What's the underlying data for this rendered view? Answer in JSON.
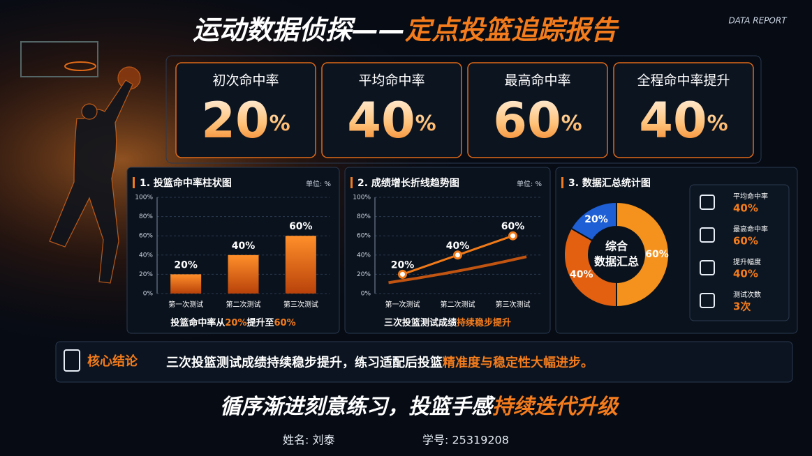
{
  "header": {
    "title": "运动数据侦探——",
    "title_highlight": "定点投篮追踪报告",
    "badge": "DATA REPORT"
  },
  "kpis": [
    {
      "label": "初次命中率",
      "value": 20,
      "unit": "%"
    },
    {
      "label": "平均命中率",
      "value": 40,
      "unit": "%"
    },
    {
      "label": "最高命中率",
      "value": 60,
      "unit": "%"
    },
    {
      "label": "全程命中率提升",
      "value": 40,
      "unit": "%"
    }
  ],
  "chart_data": [
    {
      "type": "bar",
      "title": "1. 投篮命中率柱状图",
      "unit_label": "单位: %",
      "categories": [
        "第一次测试",
        "第二次测试",
        "第三次测试"
      ],
      "values": [
        20,
        40,
        60
      ],
      "value_labels": [
        "20%",
        "40%",
        "60%"
      ],
      "color": "#f07a1a",
      "ylim": [
        0,
        100
      ],
      "yticks": [
        {
          "value": 0,
          "label": "0%"
        },
        {
          "value": 20,
          "label": "20%"
        },
        {
          "value": 40,
          "label": "40%"
        },
        {
          "value": 60,
          "label": "60%"
        },
        {
          "value": 80,
          "label": "80%"
        },
        {
          "value": 100,
          "label": "100%"
        }
      ],
      "grid": true,
      "caption": [
        "投篮命中率从",
        "20%",
        "提升至",
        "60%"
      ]
    },
    {
      "type": "line",
      "title": "2. 成绩增长折线趋势图",
      "unit_label": "单位: %",
      "categories": [
        "第一次测试",
        "第二次测试",
        "第三次测试"
      ],
      "values": [
        20,
        40,
        60
      ],
      "value_labels": [
        "20%",
        "40%",
        "60%"
      ],
      "color": "#f07a1a",
      "ylim": [
        0,
        100
      ],
      "yticks": [
        {
          "value": 0,
          "label": "0%"
        },
        {
          "value": 20,
          "label": "20%"
        },
        {
          "value": 40,
          "label": "40%"
        },
        {
          "value": 60,
          "label": "60%"
        },
        {
          "value": 80,
          "label": "80%"
        },
        {
          "value": 100,
          "label": "100%"
        }
      ],
      "grid": true,
      "caption": [
        "三次投篮测试成绩",
        "持续稳步提升"
      ]
    },
    {
      "type": "pie",
      "title": "3. 数据汇总统计图",
      "center_label": [
        "综合",
        "数据汇总"
      ],
      "values": [
        60,
        40,
        20
      ],
      "value_labels": [
        "60%",
        "40%",
        "20%"
      ],
      "colors": [
        "#f5921e",
        "#e2600f",
        "#1e5fd6"
      ]
    }
  ],
  "summary_stats": [
    {
      "label": "平均命中率",
      "value": "40%"
    },
    {
      "label": "最高命中率",
      "value": "60%"
    },
    {
      "label": "提升幅度",
      "value": "40%"
    },
    {
      "label": "测试次数",
      "value": "3次"
    }
  ],
  "conclusion": {
    "label": "核心结论",
    "text": "三次投篮测试成绩持续稳步提升，练习适配后投篮",
    "highlight": "精准度与稳定性大幅进步。"
  },
  "slogan": {
    "text": "循序渐进刻意练习，投篮手感",
    "highlight": "持续迭代升级"
  },
  "footer": {
    "name": "姓名: 刘泰",
    "id": "学号: 25319208"
  }
}
